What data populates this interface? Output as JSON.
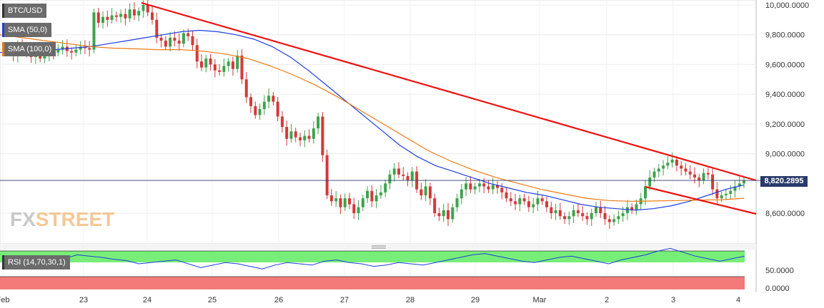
{
  "instrument": {
    "symbol": "BTC/USD",
    "indicators": [
      "SMA (50,0)",
      "SMA (100,0)"
    ],
    "rsi_label": "RSI (14,70,30,1)",
    "last_price": "8,820.2895",
    "brand_a": "FX",
    "brand_b": "STREET"
  },
  "colors": {
    "bull": "#3fa34d",
    "bear": "#d23a3a",
    "sma50": "#1f3de0",
    "sma100": "#ee7a12",
    "trendline": "#ee1111",
    "rsi_overbought": "#77ee77",
    "rsi_oversold": "#f47a7a",
    "rsi_line": "#1f3de0",
    "price_tag": "#2a3a6a"
  },
  "chart_data": {
    "type": "candlestick",
    "ylim": [
      8400,
      10050
    ],
    "x_tick_labels": [
      "Feb",
      "23",
      "24",
      "25",
      "26",
      "27",
      "28",
      "29",
      "Mar",
      "2",
      "3",
      "4"
    ],
    "y_tick_labels": [
      "10,000.0000",
      "9,800.0000",
      "9,600.0000",
      "9,400.0000",
      "9,200.0000",
      "9,000.0000",
      "8,600.0000"
    ],
    "last_price_value": 8820.29,
    "closes": [
      9700,
      9690,
      9660,
      9720,
      9680,
      9700,
      9650,
      9670,
      9640,
      9660,
      9700,
      9680,
      9700,
      9720,
      9690,
      9680,
      9700,
      9720,
      9710,
      9700,
      9950,
      9880,
      9920,
      9900,
      9930,
      9920,
      9940,
      9910,
      9970,
      9930,
      9960,
      10000,
      9950,
      9900,
      9780,
      9760,
      9720,
      9780,
      9760,
      9740,
      9810,
      9790,
      9730,
      9620,
      9580,
      9640,
      9600,
      9560,
      9550,
      9590,
      9620,
      9570,
      9660,
      9500,
      9380,
      9320,
      9260,
      9300,
      9350,
      9390,
      9350,
      9250,
      9180,
      9100,
      9150,
      9110,
      9090,
      9120,
      9100,
      9170,
      9250,
      8990,
      8720,
      8680,
      8700,
      8640,
      8700,
      8660,
      8600,
      8640,
      8700,
      8750,
      8680,
      8720,
      8740,
      8800,
      8860,
      8900,
      8860,
      8850,
      8820,
      8880,
      8760,
      8720,
      8780,
      8700,
      8600,
      8580,
      8620,
      8560,
      8640,
      8700,
      8760,
      8800,
      8760,
      8780,
      8800,
      8780,
      8760,
      8790,
      8770,
      8740,
      8700,
      8680,
      8660,
      8700,
      8680,
      8640,
      8660,
      8700,
      8680,
      8640,
      8600,
      8620,
      8580,
      8560,
      8580,
      8620,
      8600,
      8580,
      8560,
      8600,
      8640,
      8600,
      8560,
      8540,
      8560,
      8580,
      8600,
      8640,
      8620,
      8660,
      8700,
      8780,
      8840,
      8880,
      8900,
      8920,
      8940,
      8960,
      8920,
      8900,
      8880,
      8860,
      8840,
      8820,
      8870,
      8860,
      8760,
      8700,
      8720,
      8730,
      8750,
      8780,
      8800,
      8820
    ],
    "opens": [
      9680,
      9700,
      9690,
      9660,
      9720,
      9680,
      9700,
      9650,
      9670,
      9640,
      9660,
      9700,
      9680,
      9700,
      9720,
      9690,
      9680,
      9700,
      9720,
      9710,
      9700,
      9950,
      9880,
      9920,
      9900,
      9930,
      9920,
      9940,
      9910,
      9970,
      9930,
      9960,
      10000,
      9950,
      9900,
      9780,
      9760,
      9720,
      9780,
      9760,
      9740,
      9810,
      9790,
      9730,
      9620,
      9580,
      9640,
      9600,
      9560,
      9550,
      9590,
      9620,
      9570,
      9660,
      9500,
      9380,
      9320,
      9260,
      9300,
      9350,
      9390,
      9350,
      9250,
      9180,
      9100,
      9150,
      9110,
      9090,
      9120,
      9100,
      9170,
      9250,
      8990,
      8720,
      8680,
      8700,
      8640,
      8700,
      8660,
      8600,
      8640,
      8700,
      8750,
      8680,
      8720,
      8740,
      8800,
      8860,
      8900,
      8860,
      8850,
      8820,
      8880,
      8760,
      8720,
      8780,
      8700,
      8600,
      8580,
      8620,
      8560,
      8640,
      8700,
      8760,
      8800,
      8760,
      8780,
      8800,
      8780,
      8760,
      8790,
      8770,
      8740,
      8700,
      8680,
      8660,
      8700,
      8680,
      8640,
      8660,
      8700,
      8680,
      8640,
      8600,
      8620,
      8580,
      8560,
      8580,
      8620,
      8600,
      8580,
      8560,
      8600,
      8640,
      8600,
      8560,
      8540,
      8560,
      8580,
      8600,
      8640,
      8620,
      8660,
      8700,
      8780,
      8840,
      8880,
      8900,
      8920,
      8940,
      8960,
      8920,
      8900,
      8880,
      8860,
      8840,
      8820,
      8870,
      8860,
      8760,
      8700,
      8720,
      8730,
      8750,
      8780,
      8800
    ],
    "sma50": [
      9680,
      9685,
      9690,
      9700,
      9710,
      9720,
      9740,
      9760,
      9780,
      9800,
      9820,
      9830,
      9820,
      9800,
      9770,
      9720,
      9650,
      9560,
      9460,
      9360,
      9260,
      9160,
      9060,
      8980,
      8920,
      8880,
      8840,
      8800,
      8770,
      8740,
      8720,
      8690,
      8660,
      8640,
      8630,
      8620,
      8630,
      8650,
      8680,
      8720,
      8760,
      8790
    ],
    "sma100": [
      9800,
      9780,
      9760,
      9740,
      9720,
      9710,
      9705,
      9700,
      9700,
      9690,
      9670,
      9640,
      9590,
      9530,
      9460,
      9380,
      9290,
      9200,
      9110,
      9020,
      8950,
      8890,
      8840,
      8800,
      8760,
      8730,
      8700,
      8685,
      8680,
      8682,
      8685,
      8688,
      8690,
      8700
    ],
    "rsi": [
      58,
      60,
      56,
      62,
      60,
      58,
      64,
      62,
      60,
      57,
      55,
      50,
      52,
      54,
      56,
      50,
      44,
      48,
      52,
      50,
      46,
      42,
      48,
      52,
      50,
      48,
      54,
      56,
      52,
      50,
      46,
      48,
      52,
      50,
      48,
      52,
      56,
      60,
      64,
      66,
      62,
      58,
      54,
      52,
      56,
      60,
      62,
      58,
      54,
      50,
      56,
      60,
      64,
      70,
      74,
      68,
      62,
      58,
      54,
      58,
      62
    ]
  }
}
